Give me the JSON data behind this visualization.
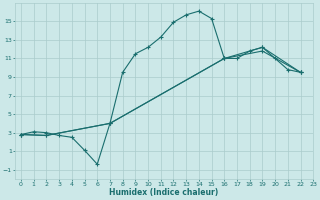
{
  "title": "",
  "xlabel": "Humidex (Indice chaleur)",
  "bg_color": "#cce8e8",
  "grid_color": "#aacccc",
  "line_color": "#1a6e6e",
  "line1_x": [
    0,
    1,
    2,
    3,
    4,
    5,
    6,
    7,
    8,
    9,
    10,
    11,
    12,
    13,
    14,
    15,
    16,
    17,
    18,
    19,
    20,
    21,
    22
  ],
  "line1_y": [
    2.8,
    3.1,
    3.0,
    2.7,
    2.5,
    1.1,
    -0.4,
    4.0,
    9.5,
    11.5,
    12.2,
    13.3,
    14.9,
    15.7,
    16.1,
    15.3,
    11.0,
    11.0,
    11.8,
    12.2,
    11.0,
    9.8,
    9.5
  ],
  "line2_x": [
    0,
    2,
    7,
    16,
    19,
    22
  ],
  "line2_y": [
    2.8,
    2.7,
    4.0,
    11.0,
    11.8,
    9.5
  ],
  "line3_x": [
    0,
    2,
    7,
    16,
    19,
    22
  ],
  "line3_y": [
    2.8,
    2.7,
    4.0,
    11.0,
    12.2,
    9.5
  ],
  "xlim": [
    -0.5,
    23.0
  ],
  "ylim": [
    -2.0,
    17.0
  ],
  "yticks": [
    -1,
    1,
    3,
    5,
    7,
    9,
    11,
    13,
    15
  ],
  "xticks": [
    0,
    1,
    2,
    3,
    4,
    5,
    6,
    7,
    8,
    9,
    10,
    11,
    12,
    13,
    14,
    15,
    16,
    17,
    18,
    19,
    20,
    21,
    22,
    23
  ]
}
